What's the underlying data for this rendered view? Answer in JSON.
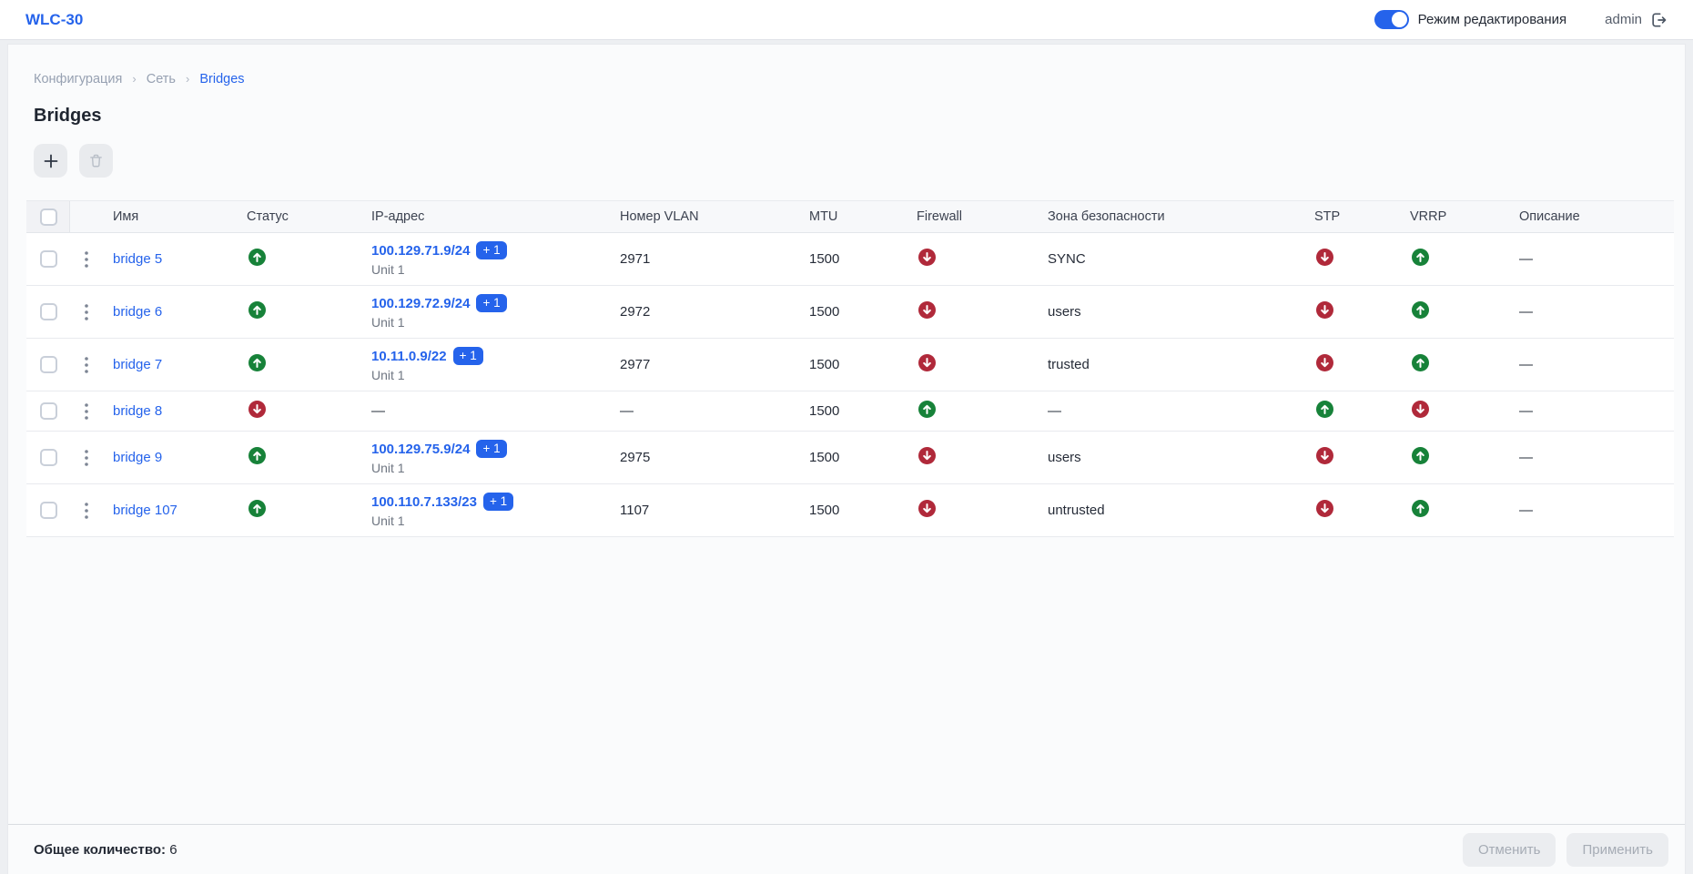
{
  "topbar": {
    "brand": "WLC-30",
    "edit_mode_label": "Режим редактирования",
    "edit_mode_on": true,
    "username": "admin"
  },
  "breadcrumb": {
    "items": [
      "Конфигурация",
      "Сеть",
      "Bridges"
    ],
    "separator": "›"
  },
  "page": {
    "title": "Bridges"
  },
  "table": {
    "columns": [
      "Имя",
      "Статус",
      "IP-адрес",
      "Номер VLAN",
      "MTU",
      "Firewall",
      "Зона безопасности",
      "STP",
      "VRRP",
      "Описание"
    ],
    "empty_placeholder": "—",
    "rows": [
      {
        "name": "bridge 5",
        "status": "up",
        "ip": "100.129.71.9/24",
        "ip_badge": "+ 1",
        "ip_sub": "Unit 1",
        "vlan": "2971",
        "mtu": "1500",
        "firewall": "down",
        "zone": "SYNC",
        "stp": "down",
        "vrrp": "up",
        "description": "—"
      },
      {
        "name": "bridge 6",
        "status": "up",
        "ip": "100.129.72.9/24",
        "ip_badge": "+ 1",
        "ip_sub": "Unit 1",
        "vlan": "2972",
        "mtu": "1500",
        "firewall": "down",
        "zone": "users",
        "stp": "down",
        "vrrp": "up",
        "description": "—"
      },
      {
        "name": "bridge 7",
        "status": "up",
        "ip": "10.11.0.9/22",
        "ip_badge": "+ 1",
        "ip_sub": "Unit 1",
        "vlan": "2977",
        "mtu": "1500",
        "firewall": "down",
        "zone": "trusted",
        "stp": "down",
        "vrrp": "up",
        "description": "—"
      },
      {
        "name": "bridge 8",
        "status": "down",
        "ip": "—",
        "ip_badge": null,
        "ip_sub": null,
        "vlan": "—",
        "mtu": "1500",
        "firewall": "up",
        "zone": "—",
        "stp": "up",
        "vrrp": "down",
        "description": "—"
      },
      {
        "name": "bridge 9",
        "status": "up",
        "ip": "100.129.75.9/24",
        "ip_badge": "+ 1",
        "ip_sub": "Unit 1",
        "vlan": "2975",
        "mtu": "1500",
        "firewall": "down",
        "zone": "users",
        "stp": "down",
        "vrrp": "up",
        "description": "—"
      },
      {
        "name": "bridge 107",
        "status": "up",
        "ip": "100.110.7.133/23",
        "ip_badge": "+ 1",
        "ip_sub": "Unit 1",
        "vlan": "1107",
        "mtu": "1500",
        "firewall": "down",
        "zone": "untrusted",
        "stp": "down",
        "vrrp": "up",
        "description": "—"
      }
    ]
  },
  "footer": {
    "total_label": "Общее количество:",
    "total_value": "6",
    "cancel_label": "Отменить",
    "apply_label": "Применить"
  },
  "colors": {
    "accent": "#2563eb",
    "up": "#178239",
    "down": "#b0293a"
  }
}
